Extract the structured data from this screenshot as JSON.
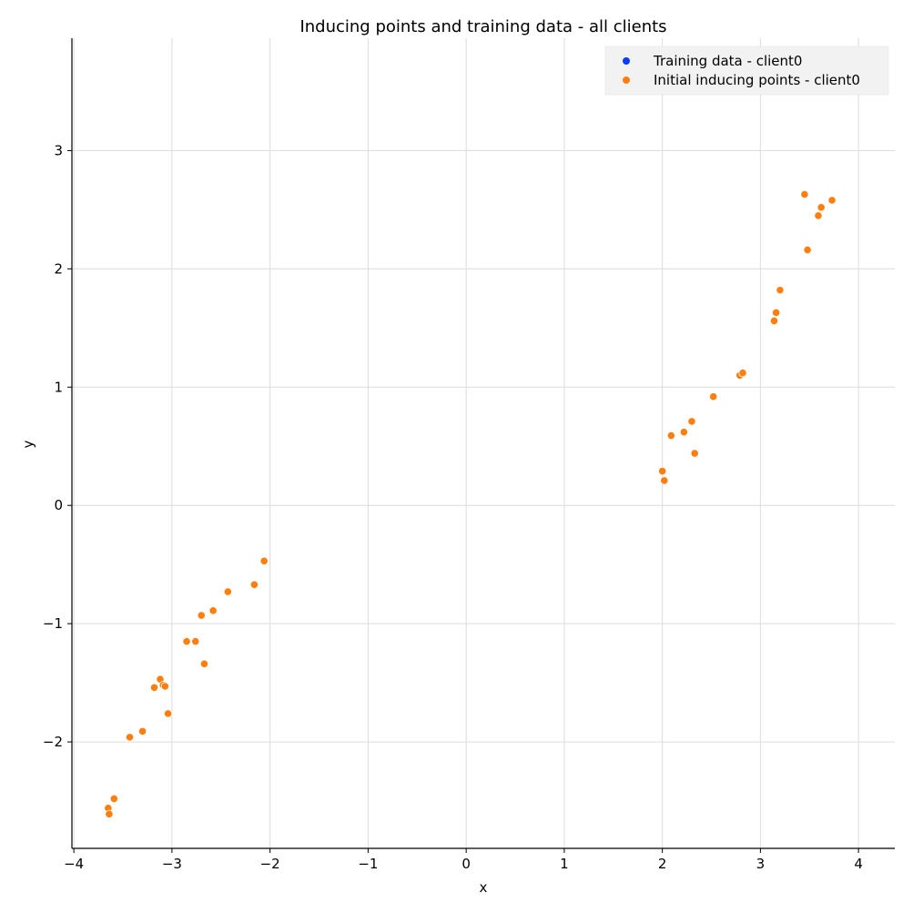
{
  "chart_data": {
    "type": "scatter",
    "title": "Inducing points and training data - all clients",
    "xlabel": "x",
    "ylabel": "y",
    "xlim": [
      -4.02,
      4.37
    ],
    "ylim": [
      -2.9,
      3.95
    ],
    "xticks": [
      -4,
      -3,
      -2,
      -1,
      0,
      1,
      2,
      3,
      4
    ],
    "yticks": [
      -2,
      -1,
      0,
      1,
      2,
      3
    ],
    "xtick_labels": [
      "−4",
      "−3",
      "−2",
      "−1",
      "0",
      "1",
      "2",
      "3",
      "4"
    ],
    "ytick_labels": [
      "−2",
      "−1",
      "0",
      "1",
      "2",
      "3"
    ],
    "grid": true,
    "legend_position": "top-right",
    "series": [
      {
        "name": "Training data - client0",
        "color": "#0b3bff",
        "points": []
      },
      {
        "name": "Initial inducing points - client0",
        "color": "#ff7f0e",
        "points": [
          [
            -3.65,
            -2.56
          ],
          [
            -3.64,
            -2.61
          ],
          [
            -3.59,
            -2.48
          ],
          [
            -3.43,
            -1.96
          ],
          [
            -3.3,
            -1.91
          ],
          [
            -3.18,
            -1.54
          ],
          [
            -3.12,
            -1.47
          ],
          [
            -3.09,
            -1.52
          ],
          [
            -3.07,
            -1.53
          ],
          [
            -3.04,
            -1.76
          ],
          [
            -2.85,
            -1.15
          ],
          [
            -2.76,
            -1.15
          ],
          [
            -2.7,
            -0.93
          ],
          [
            -2.67,
            -1.34
          ],
          [
            -2.58,
            -0.89
          ],
          [
            -2.43,
            -0.73
          ],
          [
            -2.16,
            -0.67
          ],
          [
            -2.06,
            -0.47
          ],
          [
            2.0,
            0.29
          ],
          [
            2.02,
            0.21
          ],
          [
            2.09,
            0.59
          ],
          [
            2.22,
            0.62
          ],
          [
            2.3,
            0.71
          ],
          [
            2.33,
            0.44
          ],
          [
            2.52,
            0.92
          ],
          [
            2.79,
            1.1
          ],
          [
            2.82,
            1.12
          ],
          [
            3.14,
            1.56
          ],
          [
            3.16,
            1.63
          ],
          [
            3.2,
            1.82
          ],
          [
            3.45,
            2.63
          ],
          [
            3.48,
            2.16
          ],
          [
            3.59,
            2.45
          ],
          [
            3.62,
            2.52
          ],
          [
            3.73,
            2.58
          ],
          [
            4.0,
            3.63
          ]
        ]
      }
    ]
  }
}
